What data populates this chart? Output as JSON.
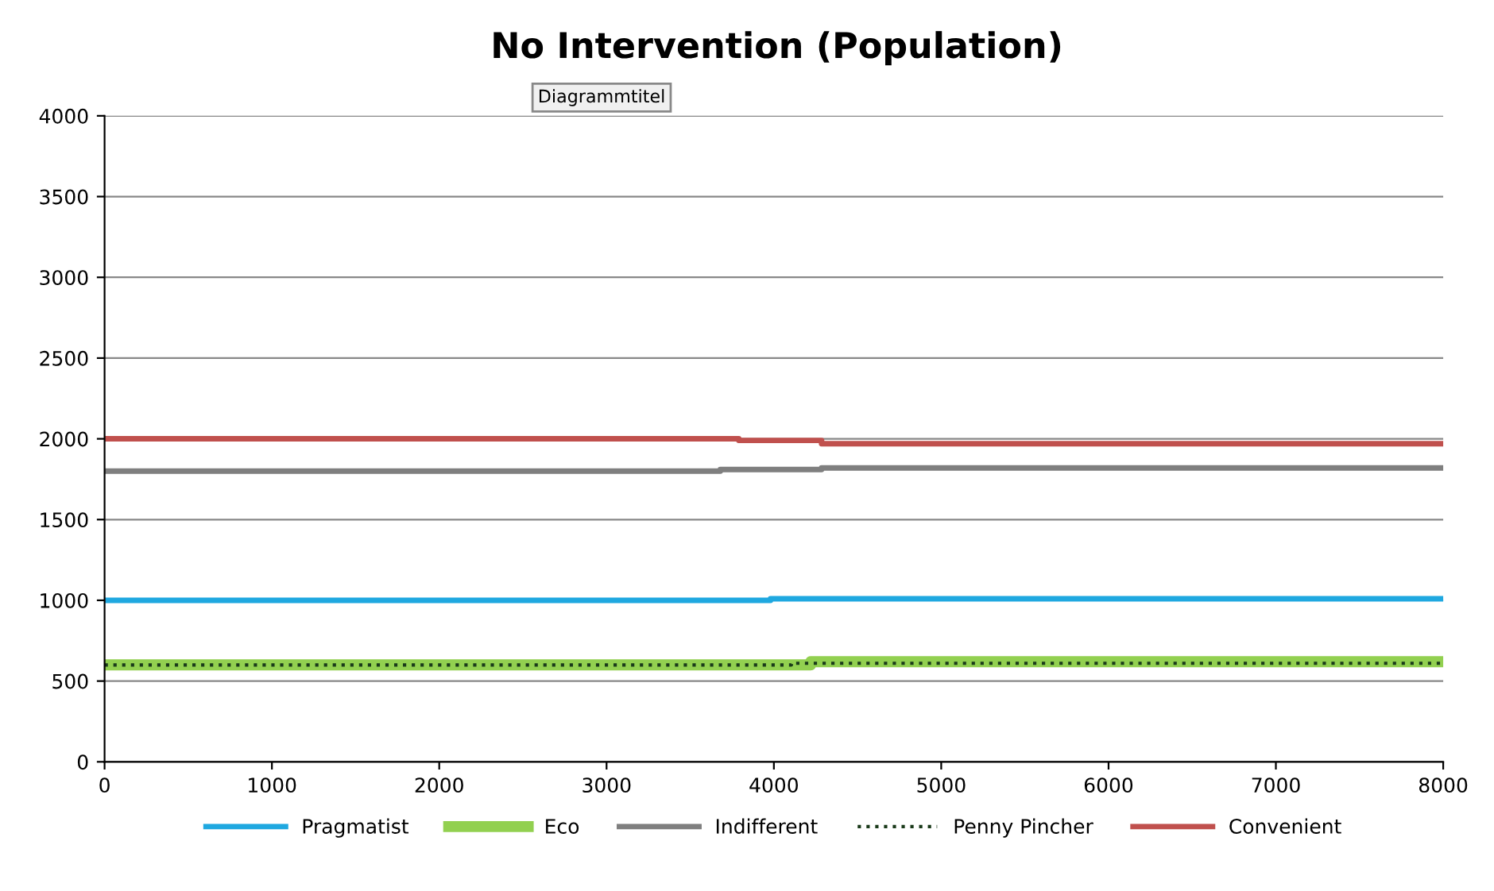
{
  "chart_data": {
    "type": "step",
    "title": "No Intervention (Population)",
    "annotations": [
      "Diagrammtitel"
    ],
    "series": [
      {
        "name": "Pragmatist",
        "color": "#1fa8e0",
        "x": [
          0,
          3980,
          8000
        ],
        "values": [
          1000,
          1010,
          1010
        ],
        "line_style": "solid"
      },
      {
        "name": "Eco",
        "color": "#92d050",
        "x": [
          0,
          4220,
          8000
        ],
        "values": [
          600,
          620,
          620
        ],
        "line_style": "solid"
      },
      {
        "name": "Indifferent",
        "color": "#7f7f7f",
        "x": [
          0,
          3680,
          4285,
          8000
        ],
        "values": [
          1800,
          1810,
          1820,
          1820
        ],
        "line_style": "solid"
      },
      {
        "name": "Penny Pincher",
        "color": "#1a3a1a",
        "x": [
          0,
          4105,
          8000
        ],
        "values": [
          600,
          610,
          610
        ],
        "line_style": "dotted"
      },
      {
        "name": "Convenient",
        "color": "#c0504d",
        "x": [
          0,
          3790,
          4285,
          8000
        ],
        "values": [
          2000,
          1990,
          1970,
          1970
        ],
        "line_style": "solid"
      }
    ],
    "xlim": [
      0,
      8000
    ],
    "xticks": [
      0,
      1000,
      2000,
      3000,
      4000,
      5000,
      6000,
      7000,
      8000
    ],
    "ylim": [
      0,
      4000
    ],
    "yticks": [
      0,
      500,
      1000,
      1500,
      2000,
      2500,
      3000,
      3500,
      4000
    ],
    "grid": "y",
    "legend": "bottom",
    "marker": "none"
  }
}
